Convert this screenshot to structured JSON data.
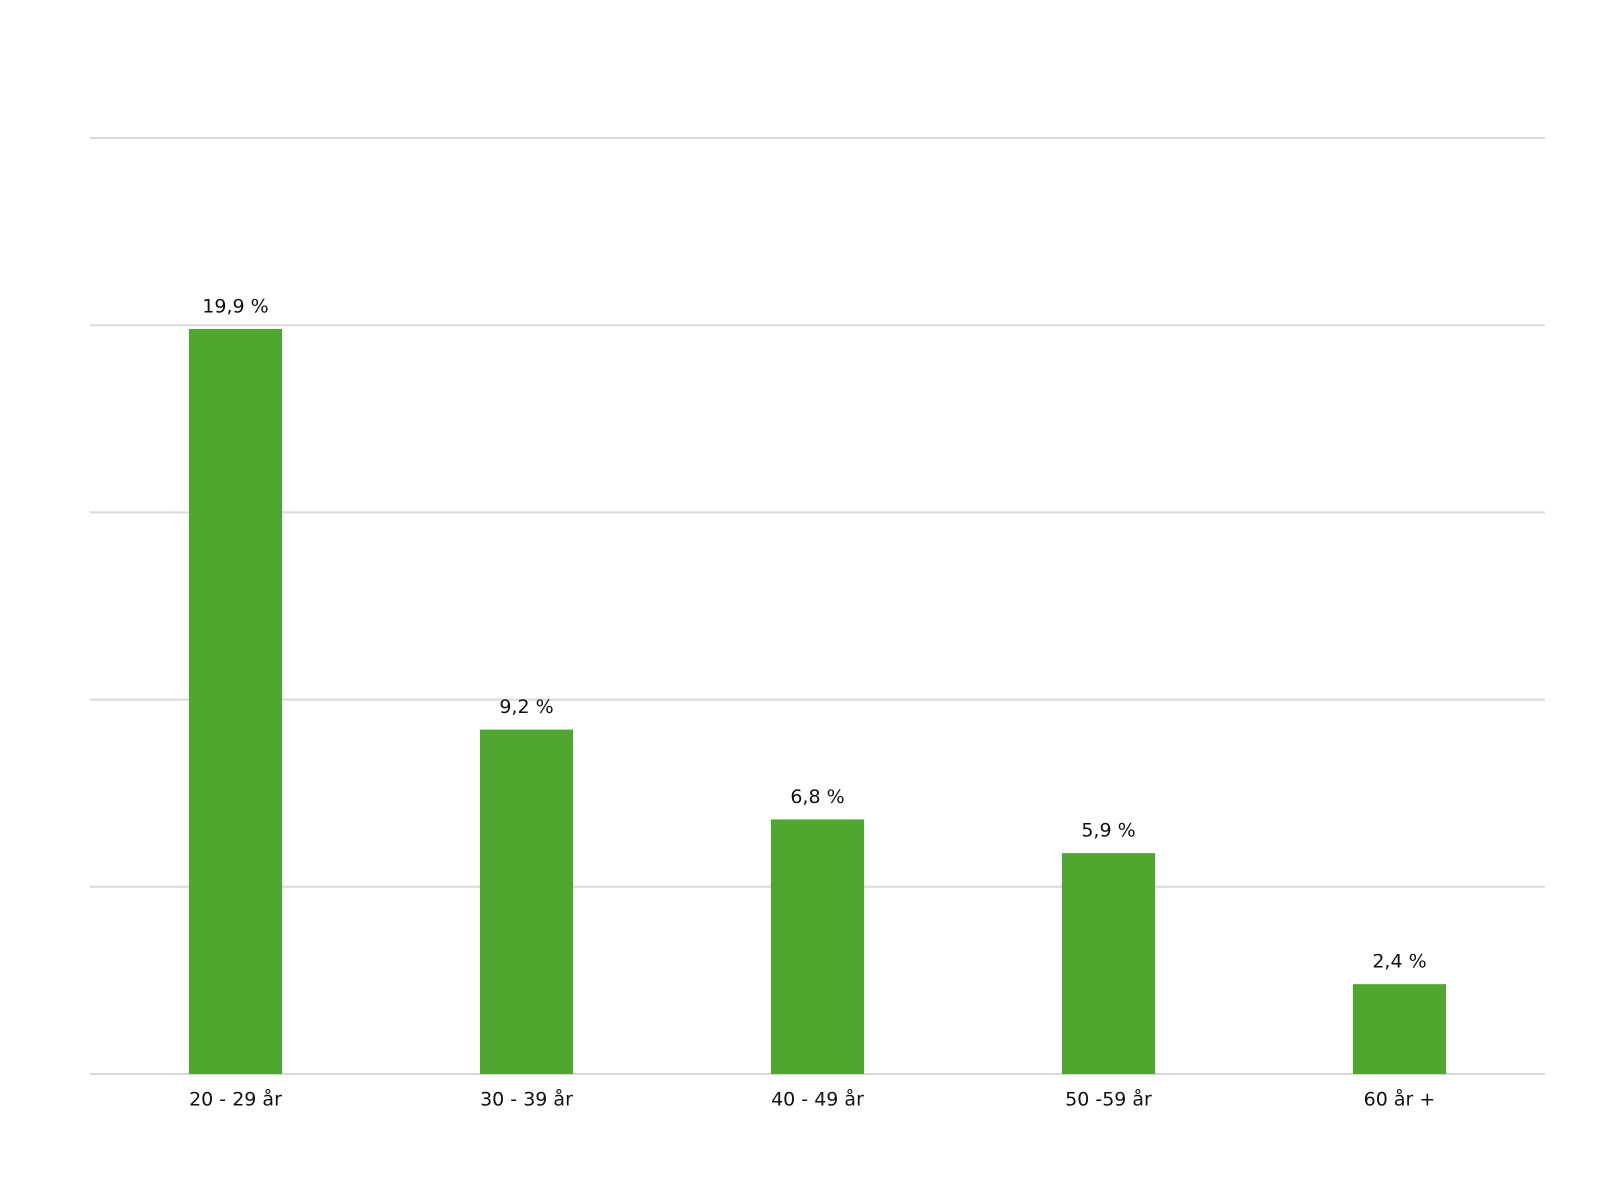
{
  "chart_data": {
    "type": "bar",
    "categories": [
      "20 - 29 år",
      "30 - 39 år",
      "40 - 49 år",
      "50 -59 år",
      "60 år +"
    ],
    "values": [
      19.9,
      9.2,
      6.8,
      5.9,
      2.4
    ],
    "value_labels": [
      "19,9 %",
      "9,2 %",
      "6,8 %",
      "5,9 %",
      "2,4 %"
    ],
    "color": "#50a72f",
    "ylim": [
      0,
      25
    ],
    "yticks": [
      0,
      5,
      10,
      15,
      20,
      25
    ],
    "grid": true
  }
}
